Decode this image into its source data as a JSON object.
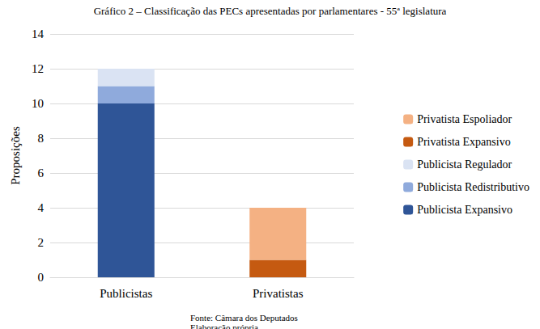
{
  "chart_data": {
    "type": "bar",
    "title": "Gráfico 2 – Classificação das PECs apresentadas por parlamentares - 55ª legislatura",
    "source": "Fonte: Câmara dos Deputados",
    "note": "Elaboração própria",
    "y_label": "Proposições",
    "categories": [
      "Publicistas",
      "Privatistas"
    ],
    "series": [
      {
        "name": "Publicista Expansivo",
        "color": "#2f5597",
        "values": [
          10,
          null
        ]
      },
      {
        "name": "Publicista Redistributivo",
        "color": "#8faadc",
        "values": [
          1,
          null
        ]
      },
      {
        "name": "Publicista Regulador",
        "color": "#dae3f3",
        "values": [
          1,
          null
        ]
      },
      {
        "name": "Privatista Expansivo",
        "color": "#c55a11",
        "values": [
          null,
          1
        ]
      },
      {
        "name": "Privatista Espoliador",
        "color": "#f4b183",
        "values": [
          null,
          3
        ]
      }
    ],
    "stacked": true,
    "ylim": [
      0,
      14
    ],
    "yticks": [
      0,
      2,
      4,
      6,
      8,
      10,
      12,
      14
    ],
    "grid": true,
    "legend": "right"
  }
}
